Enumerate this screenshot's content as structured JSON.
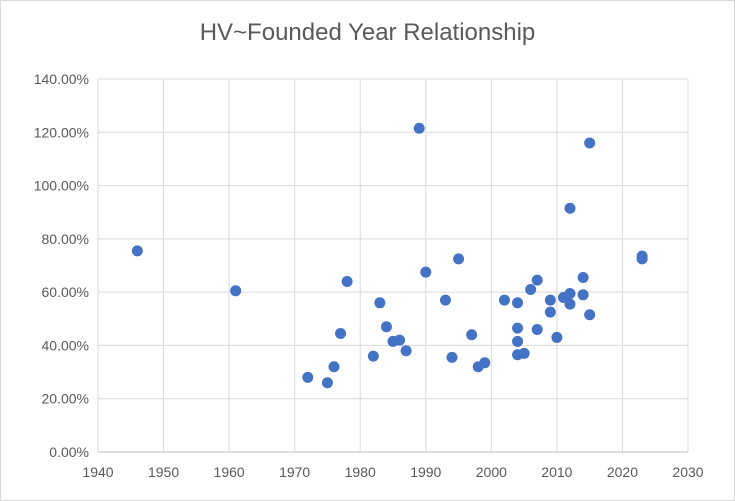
{
  "chart_data": {
    "type": "scatter",
    "title": "HV~Founded Year Relationship",
    "xlabel": "",
    "ylabel": "",
    "xlim": [
      1940,
      2030
    ],
    "ylim": [
      0,
      1.4
    ],
    "x_ticks": [
      "1940",
      "1950",
      "1960",
      "1970",
      "1980",
      "1990",
      "2000",
      "2010",
      "2020",
      "2030"
    ],
    "y_ticks": [
      "0.00%",
      "20.00%",
      "40.00%",
      "60.00%",
      "80.00%",
      "100.00%",
      "120.00%",
      "140.00%"
    ],
    "grid": true,
    "legend": "none",
    "marker_color": "#4472c4",
    "series": [
      {
        "points": [
          [
            1946,
            0.755
          ],
          [
            1961,
            0.605
          ],
          [
            1972,
            0.28
          ],
          [
            1975,
            0.26
          ],
          [
            1976,
            0.32
          ],
          [
            1977,
            0.445
          ],
          [
            1978,
            0.64
          ],
          [
            1982,
            0.36
          ],
          [
            1983,
            0.56
          ],
          [
            1984,
            0.47
          ],
          [
            1985,
            0.415
          ],
          [
            1986,
            0.42
          ],
          [
            1987,
            0.38
          ],
          [
            1989,
            1.215
          ],
          [
            1990,
            0.675
          ],
          [
            1993,
            0.57
          ],
          [
            1994,
            0.355
          ],
          [
            1995,
            0.725
          ],
          [
            1997,
            0.44
          ],
          [
            1998,
            0.32
          ],
          [
            1999,
            0.335
          ],
          [
            2002,
            0.57
          ],
          [
            2004,
            0.56
          ],
          [
            2004,
            0.465
          ],
          [
            2004,
            0.415
          ],
          [
            2004,
            0.365
          ],
          [
            2005,
            0.37
          ],
          [
            2006,
            0.61
          ],
          [
            2007,
            0.645
          ],
          [
            2007,
            0.46
          ],
          [
            2009,
            0.57
          ],
          [
            2009,
            0.525
          ],
          [
            2010,
            0.43
          ],
          [
            2011,
            0.58
          ],
          [
            2012,
            0.595
          ],
          [
            2012,
            0.555
          ],
          [
            2012,
            0.915
          ],
          [
            2014,
            0.655
          ],
          [
            2014,
            0.59
          ],
          [
            2015,
            1.16
          ],
          [
            2015,
            0.515
          ],
          [
            2023,
            0.735
          ],
          [
            2023,
            0.725
          ]
        ]
      }
    ]
  }
}
